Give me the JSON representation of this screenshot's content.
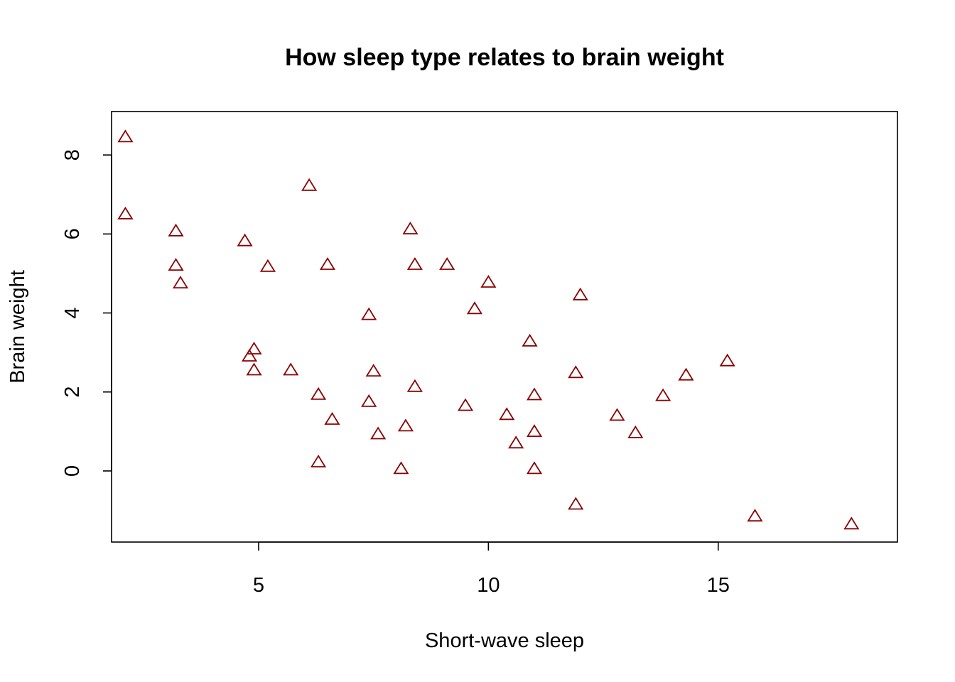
{
  "chart_data": {
    "type": "scatter",
    "title": "How sleep type relates to brain weight",
    "xlabel": "Short-wave sleep",
    "ylabel": "Brain weight",
    "xlim": [
      1.8,
      18.9
    ],
    "ylim": [
      -1.8,
      9.1
    ],
    "xticks": [
      5,
      10,
      15
    ],
    "yticks": [
      0,
      2,
      4,
      6,
      8
    ],
    "grid": false,
    "legend": "none",
    "marker": "triangle-open",
    "marker_color": "#8b0000",
    "points": [
      {
        "x": 2.1,
        "y": 8.45
      },
      {
        "x": 2.1,
        "y": 6.5
      },
      {
        "x": 3.2,
        "y": 6.07
      },
      {
        "x": 3.2,
        "y": 5.2
      },
      {
        "x": 3.3,
        "y": 4.75
      },
      {
        "x": 4.7,
        "y": 5.82
      },
      {
        "x": 4.8,
        "y": 2.9
      },
      {
        "x": 4.9,
        "y": 3.08
      },
      {
        "x": 4.9,
        "y": 2.55
      },
      {
        "x": 5.2,
        "y": 5.17
      },
      {
        "x": 5.7,
        "y": 2.55
      },
      {
        "x": 6.1,
        "y": 7.22
      },
      {
        "x": 6.3,
        "y": 1.93
      },
      {
        "x": 6.3,
        "y": 0.22
      },
      {
        "x": 6.5,
        "y": 5.22
      },
      {
        "x": 6.6,
        "y": 1.3
      },
      {
        "x": 7.4,
        "y": 3.95
      },
      {
        "x": 7.4,
        "y": 1.75
      },
      {
        "x": 7.5,
        "y": 2.52
      },
      {
        "x": 7.6,
        "y": 0.93
      },
      {
        "x": 8.1,
        "y": 0.05
      },
      {
        "x": 8.2,
        "y": 1.13
      },
      {
        "x": 8.3,
        "y": 6.12
      },
      {
        "x": 8.4,
        "y": 5.22
      },
      {
        "x": 8.4,
        "y": 2.13
      },
      {
        "x": 9.1,
        "y": 5.22
      },
      {
        "x": 9.5,
        "y": 1.65
      },
      {
        "x": 9.7,
        "y": 4.1
      },
      {
        "x": 10.0,
        "y": 4.77
      },
      {
        "x": 10.4,
        "y": 1.42
      },
      {
        "x": 10.6,
        "y": 0.7
      },
      {
        "x": 10.9,
        "y": 3.28
      },
      {
        "x": 11.0,
        "y": 1.92
      },
      {
        "x": 11.0,
        "y": 0.99
      },
      {
        "x": 11.0,
        "y": 0.05
      },
      {
        "x": 11.9,
        "y": 2.48
      },
      {
        "x": 11.9,
        "y": -0.85
      },
      {
        "x": 12.0,
        "y": 4.45
      },
      {
        "x": 12.8,
        "y": 1.4
      },
      {
        "x": 13.2,
        "y": 0.96
      },
      {
        "x": 13.8,
        "y": 1.9
      },
      {
        "x": 14.3,
        "y": 2.42
      },
      {
        "x": 15.2,
        "y": 2.78
      },
      {
        "x": 15.8,
        "y": -1.15
      },
      {
        "x": 17.9,
        "y": -1.35
      }
    ]
  }
}
